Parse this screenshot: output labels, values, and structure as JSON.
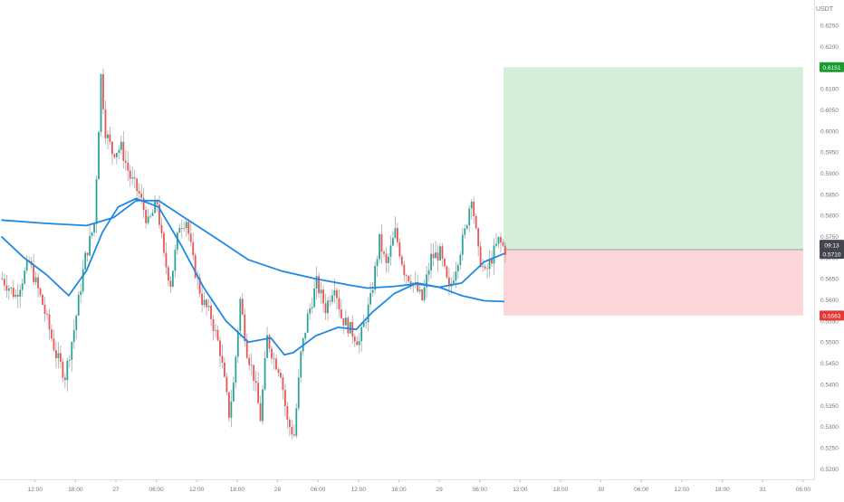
{
  "chart_data": {
    "type": "candlestick",
    "currency": "USDT",
    "y_range": [
      0.5175,
      0.631
    ],
    "y_ticks": [
      "0.6250",
      "0.6200",
      "0.6150",
      "0.6100",
      "0.6050",
      "0.6000",
      "0.5950",
      "0.5900",
      "0.5850",
      "0.5800",
      "0.5750",
      "0.5700",
      "0.5650",
      "0.5600",
      "0.5550",
      "0.5500",
      "0.5450",
      "0.5400",
      "0.5350",
      "0.5300",
      "0.5250",
      "0.5200"
    ],
    "x_ticks": [
      {
        "label": "12:00",
        "bar": 15
      },
      {
        "label": "18:00",
        "bar": 33
      },
      {
        "label": "27",
        "bar": 51
      },
      {
        "label": "06:00",
        "bar": 69
      },
      {
        "label": "12:00",
        "bar": 87
      },
      {
        "label": "18:00",
        "bar": 105
      },
      {
        "label": "28",
        "bar": 123
      },
      {
        "label": "06:00",
        "bar": 141
      },
      {
        "label": "12:00",
        "bar": 159
      },
      {
        "label": "18:00",
        "bar": 177
      },
      {
        "label": "29",
        "bar": 195
      },
      {
        "label": "06:00",
        "bar": 213
      },
      {
        "label": "12:00",
        "bar": 231
      },
      {
        "label": "18:00",
        "bar": 249
      },
      {
        "label": "30",
        "bar": 267
      },
      {
        "label": "06:00",
        "bar": 285
      },
      {
        "label": "12:00",
        "bar": 303
      },
      {
        "label": "18:00",
        "bar": 321
      },
      {
        "label": "31",
        "bar": 339
      },
      {
        "label": "06:00",
        "bar": 357
      }
    ],
    "price_path": [
      [
        0,
        0.565
      ],
      [
        6,
        0.561
      ],
      [
        12,
        0.569
      ],
      [
        18,
        0.559
      ],
      [
        24,
        0.547
      ],
      [
        28,
        0.542
      ],
      [
        32,
        0.553
      ],
      [
        37,
        0.57
      ],
      [
        41,
        0.578
      ],
      [
        43,
        0.601
      ],
      [
        44,
        0.613
      ],
      [
        46,
        0.6
      ],
      [
        49,
        0.595
      ],
      [
        53,
        0.596
      ],
      [
        57,
        0.589
      ],
      [
        61,
        0.585
      ],
      [
        65,
        0.578
      ],
      [
        69,
        0.583
      ],
      [
        72,
        0.57
      ],
      [
        75,
        0.564
      ],
      [
        79,
        0.578
      ],
      [
        82,
        0.579
      ],
      [
        85,
        0.569
      ],
      [
        89,
        0.56
      ],
      [
        93,
        0.556
      ],
      [
        97,
        0.548
      ],
      [
        101,
        0.533
      ],
      [
        103,
        0.54
      ],
      [
        106,
        0.56
      ],
      [
        109,
        0.548
      ],
      [
        112,
        0.542
      ],
      [
        115,
        0.532
      ],
      [
        118,
        0.551
      ],
      [
        121,
        0.546
      ],
      [
        124,
        0.543
      ],
      [
        127,
        0.531
      ],
      [
        130,
        0.528
      ],
      [
        133,
        0.547
      ],
      [
        136,
        0.556
      ],
      [
        140,
        0.564
      ],
      [
        144,
        0.558
      ],
      [
        148,
        0.564
      ],
      [
        151,
        0.556
      ],
      [
        155,
        0.553
      ],
      [
        159,
        0.55
      ],
      [
        164,
        0.56
      ],
      [
        168,
        0.574
      ],
      [
        171,
        0.568
      ],
      [
        175,
        0.576
      ],
      [
        179,
        0.567
      ],
      [
        183,
        0.564
      ],
      [
        187,
        0.56
      ],
      [
        191,
        0.57
      ],
      [
        195,
        0.571
      ],
      [
        199,
        0.562
      ],
      [
        203,
        0.57
      ],
      [
        206,
        0.576
      ],
      [
        209,
        0.585
      ],
      [
        212,
        0.571
      ],
      [
        215,
        0.566
      ],
      [
        218,
        0.57
      ],
      [
        221,
        0.574
      ],
      [
        224,
        0.5719
      ]
    ],
    "candles_generated_from_price_path": true,
    "moving_averages": [
      {
        "color": "#1e88e5",
        "points": [
          [
            0,
            0.5789
          ],
          [
            20,
            0.5781
          ],
          [
            38,
            0.5776
          ],
          [
            50,
            0.5795
          ],
          [
            60,
            0.5835
          ],
          [
            70,
            0.5835
          ],
          [
            80,
            0.58
          ],
          [
            95,
            0.5748
          ],
          [
            110,
            0.5695
          ],
          [
            125,
            0.5668
          ],
          [
            140,
            0.565
          ],
          [
            155,
            0.5635
          ],
          [
            163,
            0.5628
          ],
          [
            175,
            0.5632
          ],
          [
            185,
            0.5638
          ],
          [
            195,
            0.563
          ],
          [
            205,
            0.561
          ],
          [
            215,
            0.5598
          ],
          [
            224,
            0.5596
          ]
        ]
      },
      {
        "color": "#1e88e5",
        "points": [
          [
            0,
            0.575
          ],
          [
            10,
            0.57
          ],
          [
            20,
            0.566
          ],
          [
            30,
            0.561
          ],
          [
            38,
            0.567
          ],
          [
            45,
            0.576
          ],
          [
            52,
            0.582
          ],
          [
            60,
            0.584
          ],
          [
            70,
            0.582
          ],
          [
            80,
            0.573
          ],
          [
            90,
            0.563
          ],
          [
            100,
            0.555
          ],
          [
            110,
            0.55
          ],
          [
            120,
            0.551
          ],
          [
            126,
            0.547
          ],
          [
            130,
            0.5475
          ],
          [
            140,
            0.5515
          ],
          [
            150,
            0.5535
          ],
          [
            158,
            0.553
          ],
          [
            165,
            0.557
          ],
          [
            175,
            0.5615
          ],
          [
            185,
            0.564
          ],
          [
            195,
            0.563
          ],
          [
            205,
            0.564
          ],
          [
            215,
            0.569
          ],
          [
            224,
            0.571
          ]
        ]
      }
    ],
    "position": {
      "start_bar": 224,
      "end_bar": 357,
      "entry": 0.5719,
      "take_profit": 0.6151,
      "stop_loss": 0.5563
    },
    "labels": {
      "take_profit": "0.6151",
      "entry": "0.5719",
      "countdown": "09:13",
      "current": "0.5710",
      "stop_loss": "0.5563"
    },
    "current_price": 0.571,
    "colors": {
      "bull": "#26a69a",
      "bear": "#ef5350",
      "wick": "#a8a8a8",
      "ma": "#1e88e5",
      "profit_zone": "#d5eed7",
      "loss_zone": "#fbd5d7",
      "tp_tag": "#1b9b2e",
      "sl_tag": "#e53935",
      "entry_tag": "#ef5350",
      "current_tag": "#434651",
      "axis_text": "#777777"
    }
  }
}
